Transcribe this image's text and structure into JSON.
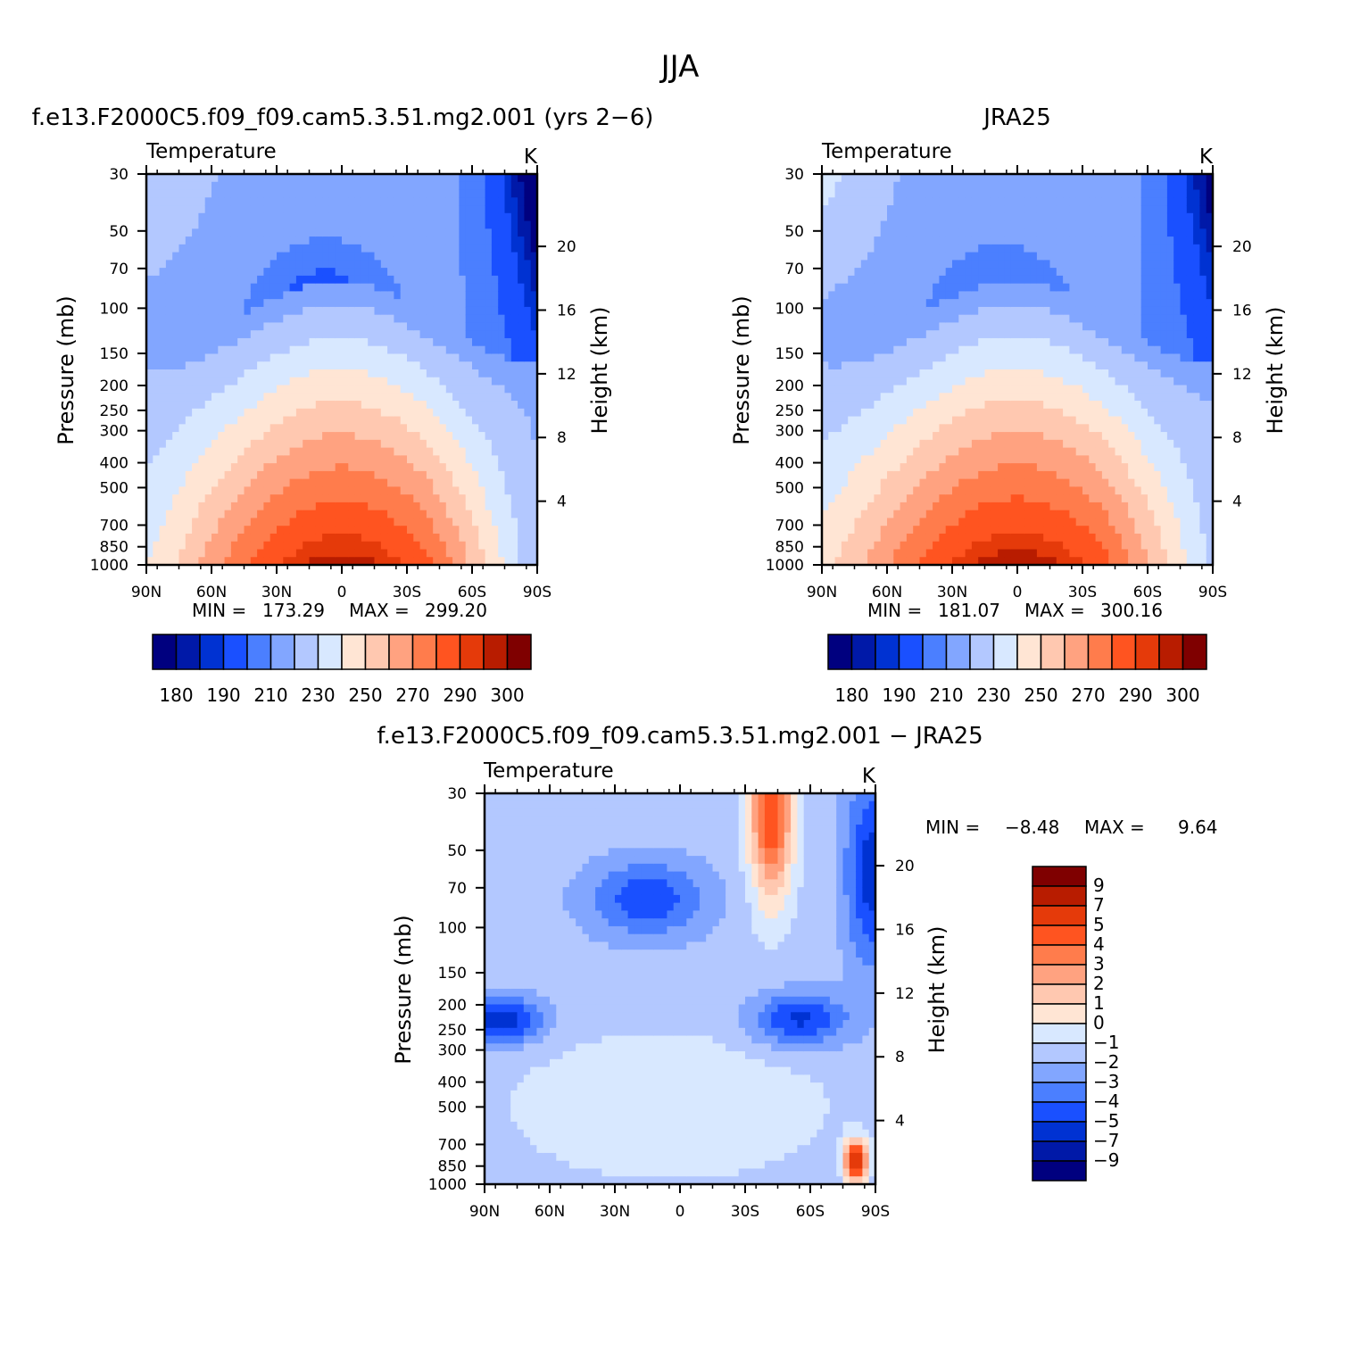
{
  "figure": {
    "title": "JJA",
    "diff_title": "f.e13.F2000C5.f09_f09.cam5.3.51.mg2.001  −  JRA25",
    "diff_stats": {
      "min_label": "MIN =",
      "min_value": "−8.48",
      "max_label": "MAX =",
      "max_value": "9.64"
    }
  },
  "colors": {
    "temp_palette": [
      "#00007f",
      "#0019a8",
      "#0032d2",
      "#1a50ff",
      "#4b7fff",
      "#82a6ff",
      "#b3c8ff",
      "#d8e8ff",
      "#ffe5d4",
      "#ffc8b0",
      "#ffa280",
      "#ff7c4c",
      "#ff5420",
      "#e53a0a",
      "#b81c00",
      "#7f0000"
    ],
    "diff_palette": [
      "#00007f",
      "#0019a8",
      "#0032d2",
      "#1a50ff",
      "#4b7fff",
      "#82a6ff",
      "#b3c8ff",
      "#d8e8ff",
      "#ffe5d4",
      "#ffc8b0",
      "#ffa280",
      "#ff7c4c",
      "#ff5420",
      "#e53a0a",
      "#b81c00",
      "#7f0000"
    ]
  },
  "chart_data": [
    {
      "type": "heatmap",
      "id": "model",
      "title": "f.e13.F2000C5.f09_f09.cam5.3.51.mg2.001  (yrs 2−6)",
      "subtitle_left": "Temperature",
      "subtitle_right": "K",
      "ylabel": "Pressure  (mb)",
      "ylabel_right": "Height  (km)",
      "x_ticks": [
        "90N",
        "60N",
        "30N",
        "0",
        "30S",
        "60S",
        "90S"
      ],
      "y_ticks": [
        "30",
        "50",
        "70",
        "100",
        "150",
        "200",
        "250",
        "300",
        "400",
        "500",
        "700",
        "850",
        "1000"
      ],
      "y_ticks_right": [
        "20",
        "16",
        "12",
        "8",
        "4"
      ],
      "xlim": [
        90,
        -90
      ],
      "ylim": [
        1000,
        30
      ],
      "min_label": "MIN =",
      "min_value": "173.29",
      "max_label": "MAX =",
      "max_value": "299.20",
      "colorbar_labels": [
        "180",
        "190",
        "210",
        "230",
        "250",
        "270",
        "290",
        "300"
      ],
      "field": {
        "tropo_min": 190,
        "tropo_max": 214,
        "pole_s": 180,
        "pole_n": 225,
        "surface_eq": 298,
        "surface_poles": 240
      }
    },
    {
      "type": "heatmap",
      "id": "obs",
      "title": "JRA25",
      "subtitle_left": "Temperature",
      "subtitle_right": "K",
      "ylabel": "Pressure  (mb)",
      "ylabel_right": "Height  (km)",
      "x_ticks": [
        "90N",
        "60N",
        "30N",
        "0",
        "30S",
        "60S",
        "90S"
      ],
      "y_ticks": [
        "30",
        "50",
        "70",
        "100",
        "150",
        "200",
        "250",
        "300",
        "400",
        "500",
        "700",
        "850",
        "1000"
      ],
      "y_ticks_right": [
        "20",
        "16",
        "12",
        "8",
        "4"
      ],
      "xlim": [
        90,
        -90
      ],
      "ylim": [
        1000,
        30
      ],
      "min_label": "MIN =",
      "min_value": "181.07",
      "max_label": "MAX =",
      "max_value": "300.16",
      "colorbar_labels": [
        "180",
        "190",
        "210",
        "230",
        "250",
        "270",
        "290",
        "300"
      ],
      "field": {
        "tropo_min": 196,
        "tropo_max": 214,
        "pole_s": 186,
        "pole_n": 230,
        "surface_eq": 299,
        "surface_poles": 246
      }
    },
    {
      "type": "heatmap",
      "id": "diff",
      "subtitle_left": "Temperature",
      "subtitle_right": "K",
      "ylabel": "Pressure  (mb)",
      "ylabel_right": "Height  (km)",
      "x_ticks": [
        "90N",
        "60N",
        "30N",
        "0",
        "30S",
        "60S",
        "90S"
      ],
      "y_ticks": [
        "30",
        "50",
        "70",
        "100",
        "150",
        "200",
        "250",
        "300",
        "400",
        "500",
        "700",
        "850",
        "1000"
      ],
      "y_ticks_right": [
        "20",
        "16",
        "12",
        "8",
        "4"
      ],
      "xlim": [
        90,
        -90
      ],
      "ylim": [
        1000,
        30
      ],
      "colorbar_labels": [
        "9",
        "7",
        "5",
        "4",
        "3",
        "2",
        "1",
        "0",
        "−1",
        "−2",
        "−3",
        "−4",
        "−5",
        "−7",
        "−9"
      ]
    }
  ]
}
